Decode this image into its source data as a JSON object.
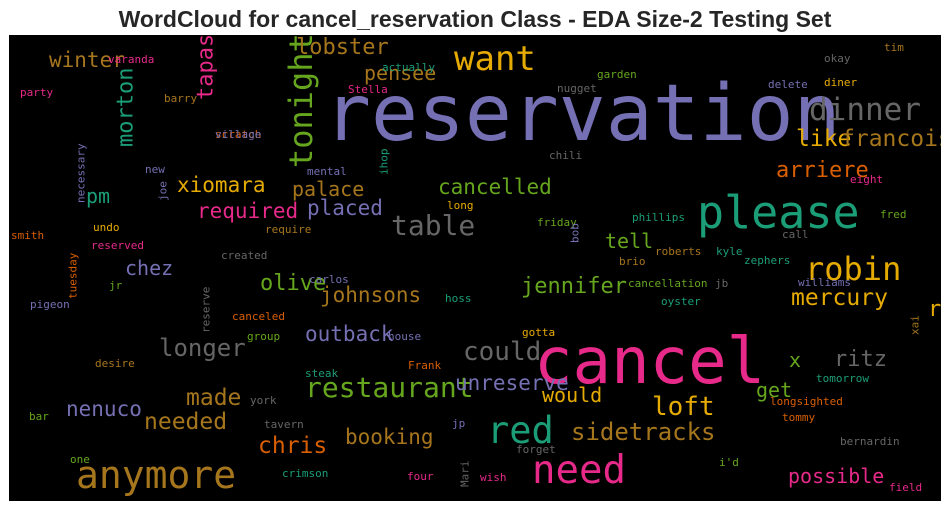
{
  "chart_data": {
    "type": "wordcloud",
    "title": "WordCloud for cancel_reservation Class - EDA Size-2 Testing Set",
    "background": "#000000",
    "words": [
      {
        "text": "reservation",
        "weight": 1.0,
        "color": "#7570b3"
      },
      {
        "text": "cancel",
        "weight": 0.82,
        "color": "#e7298a"
      },
      {
        "text": "please",
        "weight": 0.55,
        "color": "#1b9e77"
      },
      {
        "text": "need",
        "weight": 0.47,
        "color": "#e7298a"
      },
      {
        "text": "anymore",
        "weight": 0.45,
        "color": "#a6761d"
      },
      {
        "text": "red",
        "weight": 0.44,
        "color": "#1b9e77"
      },
      {
        "text": "want",
        "weight": 0.4,
        "color": "#e6ab02"
      },
      {
        "text": "tonight",
        "weight": 0.36,
        "color": "#66a61e"
      },
      {
        "text": "dinner",
        "weight": 0.35,
        "color": "#666666"
      },
      {
        "text": "robin",
        "weight": 0.36,
        "color": "#e6ab02"
      },
      {
        "text": "restaurant",
        "weight": 0.3,
        "color": "#66a61e"
      },
      {
        "text": "could",
        "weight": 0.28,
        "color": "#666666"
      },
      {
        "text": "table",
        "weight": 0.3,
        "color": "#666666"
      },
      {
        "text": "loft",
        "weight": 0.27,
        "color": "#e6ab02"
      },
      {
        "text": "sidetracks",
        "weight": 0.24,
        "color": "#a6761d"
      },
      {
        "text": "longer",
        "weight": 0.24,
        "color": "#666666"
      },
      {
        "text": "mercury",
        "weight": 0.23,
        "color": "#e6ab02"
      },
      {
        "text": "made",
        "weight": 0.23,
        "color": "#a6761d"
      },
      {
        "text": "chris",
        "weight": 0.23,
        "color": "#d95f02"
      },
      {
        "text": "like",
        "weight": 0.23,
        "color": "#e6ab02"
      },
      {
        "text": "francois",
        "weight": 0.22,
        "color": "#a6761d"
      },
      {
        "text": "needed",
        "weight": 0.22,
        "color": "#a6761d"
      },
      {
        "text": "lobster",
        "weight": 0.2,
        "color": "#a6761d"
      },
      {
        "text": "tapas",
        "weight": 0.2,
        "color": "#e7298a"
      },
      {
        "text": "morton",
        "weight": 0.2,
        "color": "#1b9e77"
      },
      {
        "text": "ritz",
        "weight": 0.2,
        "color": "#666666"
      },
      {
        "text": "arriere",
        "weight": 0.2,
        "color": "#d95f02"
      },
      {
        "text": "jennifer",
        "weight": 0.2,
        "color": "#66a61e"
      },
      {
        "text": "olive",
        "weight": 0.2,
        "color": "#66a61e"
      },
      {
        "text": "rid",
        "weight": 0.2,
        "color": "#e6ab02"
      },
      {
        "text": "outback",
        "weight": 0.19,
        "color": "#7570b3"
      },
      {
        "text": "unreserve",
        "weight": 0.19,
        "color": "#7570b3"
      },
      {
        "text": "booking",
        "weight": 0.19,
        "color": "#a6761d"
      },
      {
        "text": "nenuco",
        "weight": 0.19,
        "color": "#7570b3"
      },
      {
        "text": "johnsons",
        "weight": 0.19,
        "color": "#a6761d"
      },
      {
        "text": "winter",
        "weight": 0.19,
        "color": "#a6761d"
      },
      {
        "text": "xiomara",
        "weight": 0.19,
        "color": "#e6ab02"
      },
      {
        "text": "cancelled",
        "weight": 0.19,
        "color": "#66a61e"
      },
      {
        "text": "required",
        "weight": 0.19,
        "color": "#e7298a"
      },
      {
        "text": "placed",
        "weight": 0.19,
        "color": "#7570b3"
      },
      {
        "text": "palace",
        "weight": 0.18,
        "color": "#a6761d"
      },
      {
        "text": "pensee",
        "weight": 0.18,
        "color": "#a6761d"
      },
      {
        "text": "tell",
        "weight": 0.18,
        "color": "#66a61e"
      },
      {
        "text": "chez",
        "weight": 0.18,
        "color": "#7570b3"
      },
      {
        "text": "pm",
        "weight": 0.18,
        "color": "#1b9e77"
      },
      {
        "text": "get",
        "weight": 0.18,
        "color": "#66a61e"
      },
      {
        "text": "possible",
        "weight": 0.18,
        "color": "#e7298a"
      },
      {
        "text": "would",
        "weight": 0.17,
        "color": "#e6ab02"
      },
      {
        "text": "x",
        "weight": 0.17,
        "color": "#66a61e"
      },
      {
        "text": "varanda",
        "weight": 0.12,
        "color": "#e7298a"
      },
      {
        "text": "actually",
        "weight": 0.12,
        "color": "#1b9e77"
      },
      {
        "text": "garden",
        "weight": 0.12,
        "color": "#66a61e"
      },
      {
        "text": "nugget",
        "weight": 0.12,
        "color": "#666666"
      },
      {
        "text": "Stella",
        "weight": 0.12,
        "color": "#e7298a"
      },
      {
        "text": "okay",
        "weight": 0.12,
        "color": "#666666"
      },
      {
        "text": "tim",
        "weight": 0.12,
        "color": "#a6761d"
      },
      {
        "text": "party",
        "weight": 0.12,
        "color": "#e7298a"
      },
      {
        "text": "barry",
        "weight": 0.12,
        "color": "#a6761d"
      },
      {
        "text": "scratch",
        "weight": 0.12,
        "color": "#d95f02"
      },
      {
        "text": "village",
        "weight": 0.12,
        "color": "#7570b3"
      },
      {
        "text": "delete",
        "weight": 0.12,
        "color": "#7570b3"
      },
      {
        "text": "diner",
        "weight": 0.12,
        "color": "#e6ab02"
      },
      {
        "text": "chili",
        "weight": 0.12,
        "color": "#666666"
      },
      {
        "text": "new",
        "weight": 0.12,
        "color": "#7570b3"
      },
      {
        "text": "necessary",
        "weight": 0.12,
        "color": "#7570b3"
      },
      {
        "text": "mental",
        "weight": 0.12,
        "color": "#7570b3"
      },
      {
        "text": "ihop",
        "weight": 0.12,
        "color": "#1b9e77"
      },
      {
        "text": "long",
        "weight": 0.12,
        "color": "#e6ab02"
      },
      {
        "text": "eight",
        "weight": 0.12,
        "color": "#e7298a"
      },
      {
        "text": "joe",
        "weight": 0.12,
        "color": "#7570b3"
      },
      {
        "text": "friday",
        "weight": 0.12,
        "color": "#66a61e"
      },
      {
        "text": "phillips",
        "weight": 0.12,
        "color": "#1b9e77"
      },
      {
        "text": "fred",
        "weight": 0.12,
        "color": "#66a61e"
      },
      {
        "text": "smith",
        "weight": 0.12,
        "color": "#d95f02"
      },
      {
        "text": "undo",
        "weight": 0.12,
        "color": "#e6ab02"
      },
      {
        "text": "require",
        "weight": 0.12,
        "color": "#a6761d"
      },
      {
        "text": "bob",
        "weight": 0.12,
        "color": "#7570b3"
      },
      {
        "text": "call",
        "weight": 0.12,
        "color": "#666666"
      },
      {
        "text": "tuesday",
        "weight": 0.12,
        "color": "#d95f02"
      },
      {
        "text": "reserved",
        "weight": 0.12,
        "color": "#e7298a"
      },
      {
        "text": "created",
        "weight": 0.12,
        "color": "#666666"
      },
      {
        "text": "roberts",
        "weight": 0.12,
        "color": "#a6761d"
      },
      {
        "text": "kyle",
        "weight": 0.12,
        "color": "#1b9e77"
      },
      {
        "text": "brio",
        "weight": 0.12,
        "color": "#a6761d"
      },
      {
        "text": "zephers",
        "weight": 0.12,
        "color": "#1b9e77"
      },
      {
        "text": "carlos",
        "weight": 0.12,
        "color": "#7570b3"
      },
      {
        "text": "jr",
        "weight": 0.12,
        "color": "#66a61e"
      },
      {
        "text": "cancellation",
        "weight": 0.12,
        "color": "#66a61e"
      },
      {
        "text": "jb",
        "weight": 0.12,
        "color": "#666666"
      },
      {
        "text": "williams",
        "weight": 0.12,
        "color": "#7570b3"
      },
      {
        "text": "pigeon",
        "weight": 0.12,
        "color": "#7570b3"
      },
      {
        "text": "reserve",
        "weight": 0.12,
        "color": "#666666"
      },
      {
        "text": "hoss",
        "weight": 0.12,
        "color": "#1b9e77"
      },
      {
        "text": "oyster",
        "weight": 0.12,
        "color": "#1b9e77"
      },
      {
        "text": "canceled",
        "weight": 0.12,
        "color": "#d95f02"
      },
      {
        "text": "group",
        "weight": 0.12,
        "color": "#66a61e"
      },
      {
        "text": "house",
        "weight": 0.12,
        "color": "#7570b3"
      },
      {
        "text": "gotta",
        "weight": 0.12,
        "color": "#e6ab02"
      },
      {
        "text": "xai",
        "weight": 0.12,
        "color": "#a6761d"
      },
      {
        "text": "desire",
        "weight": 0.12,
        "color": "#a6761d"
      },
      {
        "text": "Frank",
        "weight": 0.12,
        "color": "#d95f02"
      },
      {
        "text": "steak",
        "weight": 0.12,
        "color": "#1b9e77"
      },
      {
        "text": "tomorrow",
        "weight": 0.12,
        "color": "#1b9e77"
      },
      {
        "text": "bar",
        "weight": 0.12,
        "color": "#66a61e"
      },
      {
        "text": "york",
        "weight": 0.12,
        "color": "#666666"
      },
      {
        "text": "longsighted",
        "weight": 0.12,
        "color": "#d95f02"
      },
      {
        "text": "tavern",
        "weight": 0.12,
        "color": "#666666"
      },
      {
        "text": "jp",
        "weight": 0.12,
        "color": "#7570b3"
      },
      {
        "text": "tommy",
        "weight": 0.12,
        "color": "#d95f02"
      },
      {
        "text": "forget",
        "weight": 0.12,
        "color": "#666666"
      },
      {
        "text": "one",
        "weight": 0.12,
        "color": "#66a61e"
      },
      {
        "text": "i'd",
        "weight": 0.12,
        "color": "#66a61e"
      },
      {
        "text": "bernardin",
        "weight": 0.12,
        "color": "#666666"
      },
      {
        "text": "crimson",
        "weight": 0.12,
        "color": "#1b9e77"
      },
      {
        "text": "four",
        "weight": 0.12,
        "color": "#e7298a"
      },
      {
        "text": "Mari",
        "weight": 0.12,
        "color": "#666666"
      },
      {
        "text": "wish",
        "weight": 0.12,
        "color": "#e7298a"
      },
      {
        "text": "field",
        "weight": 0.12,
        "color": "#e7298a"
      }
    ]
  }
}
